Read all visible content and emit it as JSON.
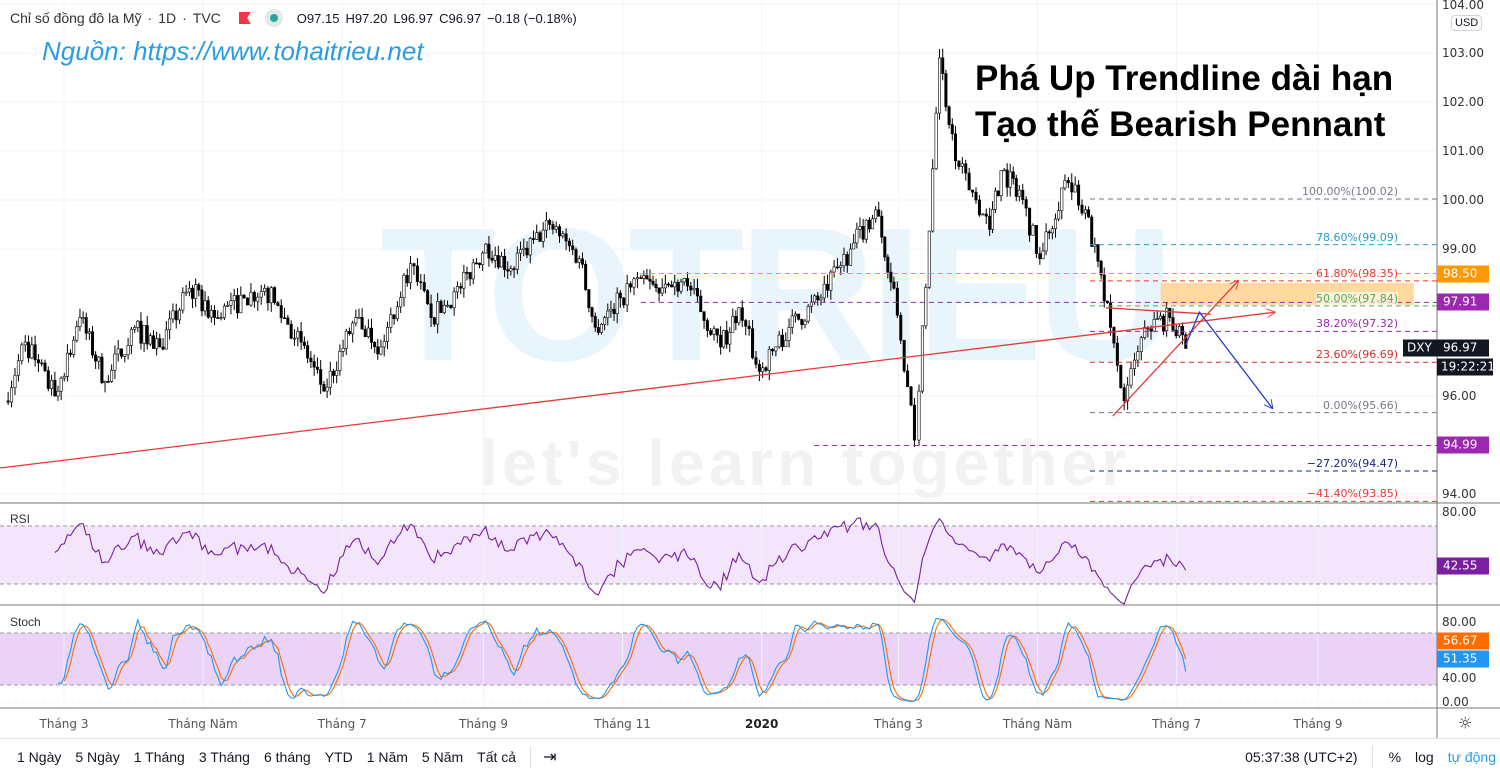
{
  "header": {
    "title": "Chỉ số đồng đô la Mỹ",
    "interval": "1D",
    "exchange": "TVC",
    "open": "O97.15",
    "high": "H97.20",
    "low": "L96.97",
    "close": "C96.97",
    "change": "−0.18 (−0.18%)"
  },
  "source_text": "Nguồn: https://www.tohaitrieu.net",
  "annotation": [
    "Phá Up Trendline dài hạn",
    "Tạo thế Bearish Pennant"
  ],
  "watermark": {
    "logo": "TOTRIEU",
    "slogan": "let's learn together"
  },
  "currency": "USD",
  "colors": {
    "up": "#ffffff",
    "down": "#000000",
    "trendline": "#e53935",
    "arrow": "#1e40c8",
    "rsi": "#7b1fa2",
    "stoch_k": "#2196f3",
    "stoch_d": "#ff6d00",
    "rsi_band": "#f3e5fb",
    "stoch_band": "#ead3f7"
  },
  "chart_data": {
    "type": "candlestick",
    "symbol": "DXY",
    "price_ticks": [
      "104.00",
      "103.00",
      "102.00",
      "101.00",
      "100.00",
      "99.00",
      "96.00",
      "94.00"
    ],
    "ylim": [
      93.8,
      104
    ],
    "time_ticks": [
      {
        "date": "2019-03-01",
        "label": "Tháng 3"
      },
      {
        "date": "2019-05-01",
        "label": "Tháng Năm"
      },
      {
        "date": "2019-07-01",
        "label": "Tháng 7"
      },
      {
        "date": "2019-09-01",
        "label": "Tháng 9"
      },
      {
        "date": "2019-11-01",
        "label": "Tháng 11"
      },
      {
        "date": "2020-01-01",
        "label": "2020"
      },
      {
        "date": "2020-03-01",
        "label": "Tháng 3"
      },
      {
        "date": "2020-05-01",
        "label": "Tháng Năm"
      },
      {
        "date": "2020-07-01",
        "label": "Tháng 7"
      },
      {
        "date": "2020-09-01",
        "label": "Tháng 9"
      }
    ],
    "close_path": [
      [
        "2019-02-03",
        95.9
      ],
      [
        "2019-02-12",
        97.1
      ],
      [
        "2019-02-25",
        96.0
      ],
      [
        "2019-03-08",
        97.6
      ],
      [
        "2019-03-19",
        96.3
      ],
      [
        "2019-04-01",
        97.4
      ],
      [
        "2019-04-12",
        97.0
      ],
      [
        "2019-04-25",
        98.2
      ],
      [
        "2019-05-06",
        97.6
      ],
      [
        "2019-05-19",
        98.0
      ],
      [
        "2019-05-28",
        98.2
      ],
      [
        "2019-06-13",
        97.1
      ],
      [
        "2019-06-23",
        96.1
      ],
      [
        "2019-07-07",
        97.6
      ],
      [
        "2019-07-18",
        97.0
      ],
      [
        "2019-07-31",
        98.7
      ],
      [
        "2019-08-09",
        97.6
      ],
      [
        "2019-08-22",
        98.2
      ],
      [
        "2019-09-02",
        99.1
      ],
      [
        "2019-09-13",
        98.6
      ],
      [
        "2019-09-30",
        99.5
      ],
      [
        "2019-10-13",
        98.8
      ],
      [
        "2019-10-20",
        97.4
      ],
      [
        "2019-10-31",
        98.0
      ],
      [
        "2019-11-09",
        98.4
      ],
      [
        "2019-11-17",
        98.1
      ],
      [
        "2019-11-28",
        98.4
      ],
      [
        "2019-12-14",
        97.0
      ],
      [
        "2019-12-22",
        97.8
      ],
      [
        "2019-12-31",
        96.5
      ],
      [
        "2020-01-13",
        97.4
      ],
      [
        "2020-01-27",
        98.0
      ],
      [
        "2020-02-09",
        99.0
      ],
      [
        "2020-02-20",
        99.8
      ],
      [
        "2020-02-28",
        98.2
      ],
      [
        "2020-03-08",
        95.1
      ],
      [
        "2020-03-10",
        96.1
      ],
      [
        "2020-03-19",
        102.9
      ],
      [
        "2020-03-26",
        100.8
      ],
      [
        "2020-04-04",
        100.0
      ],
      [
        "2020-04-10",
        99.4
      ],
      [
        "2020-04-15",
        100.6
      ],
      [
        "2020-04-23",
        100.2
      ],
      [
        "2020-05-02",
        98.8
      ],
      [
        "2020-05-13",
        100.4
      ],
      [
        "2020-05-22",
        99.8
      ],
      [
        "2020-06-02",
        97.4
      ],
      [
        "2020-06-08",
        95.9
      ],
      [
        "2020-06-17",
        97.4
      ],
      [
        "2020-06-28",
        97.6
      ],
      [
        "2020-07-05",
        96.97
      ]
    ],
    "last_price": {
      "label": "DXY",
      "value": "96.97",
      "countdown": "19:22:21"
    },
    "price_tags": [
      {
        "value": "98.50",
        "color": "#ff9800",
        "from": "2019-11-09"
      },
      {
        "value": "97.91",
        "color": "#9c27b0",
        "from": "2019-11-09"
      },
      {
        "value": "94.99",
        "color": "#9c27b0",
        "from": "2020-01-24"
      }
    ],
    "fibonacci": {
      "from": "2020-05-24",
      "levels": [
        {
          "label": "100.00%(100.02)",
          "price": 100.02,
          "color": "#787b86"
        },
        {
          "label": "78.60%(99.09)",
          "price": 99.09,
          "color": "#2a9dc8"
        },
        {
          "label": "61.80%(98.35)",
          "price": 98.35,
          "color": "#e53935"
        },
        {
          "label": "50.00%(97.84)",
          "price": 97.84,
          "color": "#4caf50"
        },
        {
          "label": "38.20%(97.32)",
          "price": 97.32,
          "color": "#9c27b0"
        },
        {
          "label": "23.60%(96.69)",
          "price": 96.69,
          "color": "#d32f2f"
        },
        {
          "label": "0.00%(95.66)",
          "price": 95.66,
          "color": "#787b86"
        },
        {
          "label": "−27.20%(94.47)",
          "price": 94.47,
          "color": "#1a237e"
        },
        {
          "label": "−41.40%(93.85)",
          "price": 93.85,
          "color": "#e53935"
        }
      ]
    },
    "zone": {
      "from": "2020-06-24",
      "to": "2020-10-13",
      "top": 98.31,
      "bottom": 97.86,
      "color": "#ffcc80"
    },
    "drawings": {
      "long_trendline": [
        [
          "2019-02-01",
          94.53
        ],
        [
          "2020-08-13",
          97.71
        ]
      ],
      "pennant_lower": [
        [
          "2020-06-03",
          95.59
        ],
        [
          "2020-07-28",
          98.35
        ]
      ],
      "pennant_upper": [
        [
          "2020-05-31",
          97.8
        ],
        [
          "2020-07-16",
          97.67
        ]
      ],
      "projection": [
        [
          "2020-07-05",
          97.04
        ],
        [
          "2020-07-11",
          97.71
        ],
        [
          "2020-08-12",
          95.75
        ]
      ]
    },
    "rsi": {
      "label": "RSI",
      "ticks": [
        "80.00"
      ],
      "bands": [
        30,
        70
      ],
      "value": "42.55"
    },
    "stoch": {
      "label": "Stoch",
      "ticks": [
        "80.00",
        "40.00",
        "0.00"
      ],
      "bands": [
        20,
        80
      ],
      "k_value": "51.35",
      "d_value": "56.67"
    }
  },
  "toolbar": {
    "ranges": [
      "1 Ngày",
      "5 Ngày",
      "1 Tháng",
      "3 Tháng",
      "6 tháng",
      "YTD",
      "1 Năm",
      "5 Năm",
      "Tất cả"
    ],
    "time": "05:37:38 (UTC+2)",
    "percent": "%",
    "log": "log",
    "auto": "tự động"
  }
}
